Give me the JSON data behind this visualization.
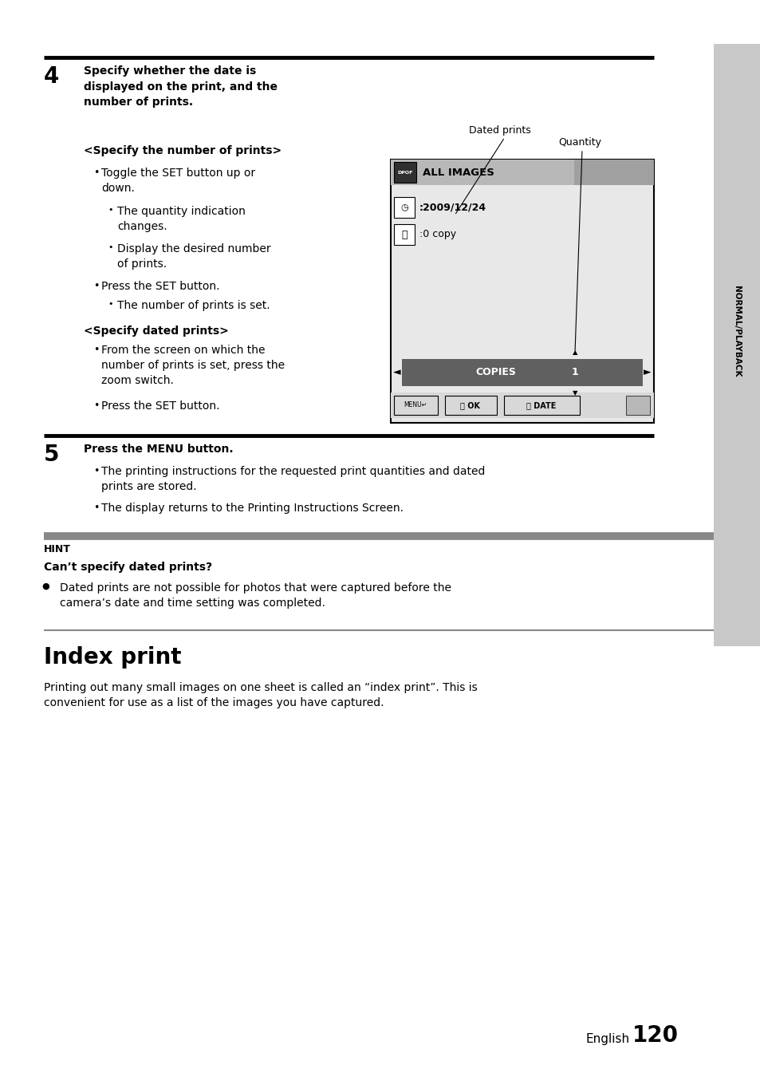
{
  "bg_color": "#ffffff",
  "page_width": 9.54,
  "page_height": 13.45,
  "sidebar_color": "#c8c8c8",
  "sidebar_text": "NORMAL/PLAYBACK",
  "screen_bg": "#e8e8e8",
  "screen_header_bg": "#c0c0c0",
  "screen_header_right_bg": "#b0b0b0",
  "screen_bar_bg": "#606060",
  "hint_bg": "#c8c8c8",
  "footer_english": "English",
  "footer_page": "120"
}
